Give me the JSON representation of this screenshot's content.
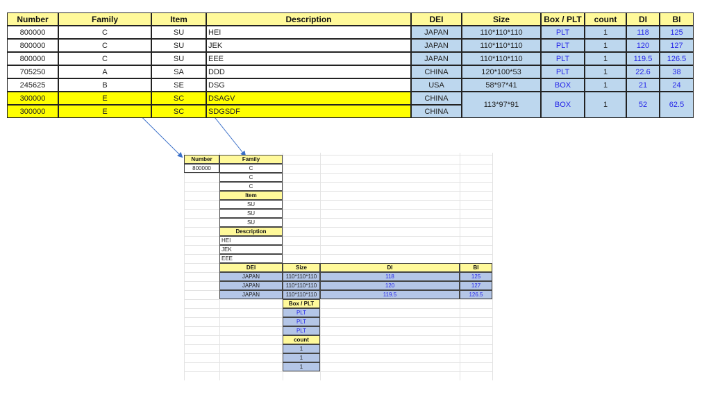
{
  "colors": {
    "header": "#FFF99A",
    "highlight": "#FFFF00",
    "cell_blue": "#BDD7EE",
    "cell_blue2": "#B4C6E7",
    "bracket": "#E8131B",
    "arrow": "#3A6FC8",
    "value_text": "#2424E8"
  },
  "top_table": {
    "headers": [
      "Number",
      "Family",
      "Item",
      "Description",
      "DEI",
      "Size",
      "Box / PLT",
      "count",
      "DI",
      "BI"
    ],
    "rows": [
      [
        "800000",
        "C",
        "SU",
        "HEI",
        "JAPAN",
        "110*110*110",
        "PLT",
        "1",
        "118",
        "125"
      ],
      [
        "800000",
        "C",
        "SU",
        "JEK",
        "JAPAN",
        "110*110*110",
        "PLT",
        "1",
        "120",
        "127"
      ],
      [
        "800000",
        "C",
        "SU",
        "EEE",
        "JAPAN",
        "110*110*110",
        "PLT",
        "1",
        "119.5",
        "126.5"
      ],
      [
        "705250",
        "A",
        "SA",
        "DDD",
        "CHINA",
        "120*100*53",
        "PLT",
        "1",
        "22.6",
        "38"
      ],
      [
        "245625",
        "B",
        "SE",
        "DSG",
        "USA",
        "58*97*41",
        "BOX",
        "1",
        "21",
        "24"
      ],
      [
        "300000",
        "E",
        "SC",
        "DSAGV",
        "CHINA",
        "113*97*91",
        "BOX",
        "1",
        "52",
        "62.5"
      ],
      [
        "300000",
        "E",
        "SC",
        "SDGSDF",
        "CHINA",
        "",
        "",
        "",
        "",
        ""
      ]
    ]
  },
  "bottom_layout": {
    "number_header": "Number",
    "number_value": "800000",
    "family_header": "Family",
    "family_values": [
      "C",
      "C",
      "C"
    ],
    "item_header": "Item",
    "item_values": [
      "SU",
      "SU",
      "SU"
    ],
    "description_header": "Description",
    "description_values": [
      "HEI",
      "JEK",
      "EEE"
    ],
    "dei_header": "DEI",
    "size_header": "Size",
    "di_header": "DI",
    "bi_header": "BI",
    "rows": [
      [
        "JAPAN",
        "110*110*110",
        "118",
        "125"
      ],
      [
        "JAPAN",
        "110*110*110",
        "120",
        "127"
      ],
      [
        "JAPAN",
        "110*110*110",
        "119.5",
        "126.5"
      ]
    ],
    "box_header": "Box / PLT",
    "box_values": [
      "PLT",
      "PLT",
      "PLT"
    ],
    "count_header": "count",
    "count_values": [
      "1",
      "1",
      "1"
    ]
  }
}
